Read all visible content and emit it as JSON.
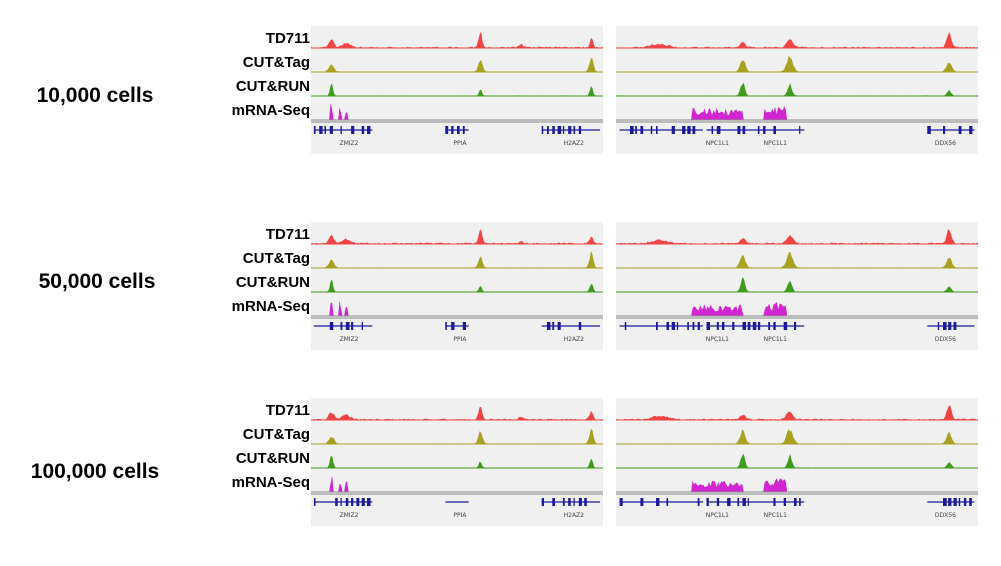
{
  "figure": {
    "tracks": [
      {
        "label": "TD711",
        "color": "#ef4545"
      },
      {
        "label": "CUT&Tag",
        "color": "#a8a121"
      },
      {
        "label": "CUT&RUN",
        "color": "#3f9a1e"
      },
      {
        "label": "mRNA-Seq",
        "color": "#d125d1"
      }
    ],
    "gene_color": "#1a1a9c",
    "conditions": [
      {
        "label": "10,000 cells"
      },
      {
        "label": "50,000 cells"
      },
      {
        "label": "100,000 cells"
      }
    ],
    "loci": [
      {
        "genes": [
          {
            "name": "ZMIZ2",
            "pos": 0.13
          },
          {
            "name": "PPIA",
            "pos": 0.51
          },
          {
            "name": "H2AZ2",
            "pos": 0.9
          }
        ]
      },
      {
        "genes": [
          {
            "name": "NPC1L1",
            "pos": 0.28
          },
          {
            "name": "NPC1L1",
            "pos": 0.44
          },
          {
            "name": "DDX56",
            "pos": 0.91
          }
        ]
      }
    ]
  }
}
